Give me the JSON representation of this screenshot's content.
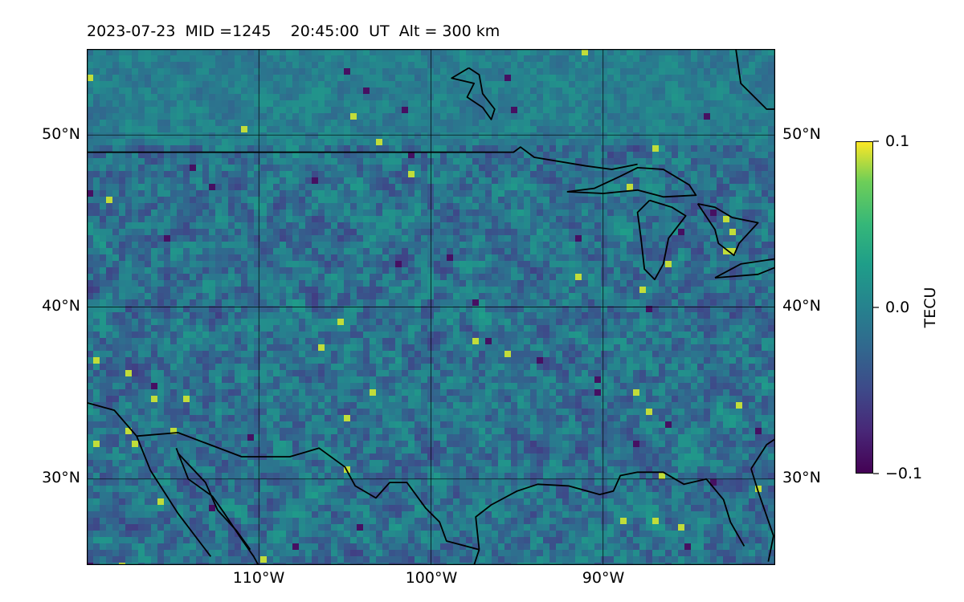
{
  "header": {
    "date": "2023-07-23",
    "mid": "MID =1245",
    "time": "20:45:00",
    "time_unit": "UT",
    "altitude": "Alt = 300 km"
  },
  "map": {
    "lon_range": [
      -120,
      -80
    ],
    "lat_range": [
      25,
      55
    ],
    "lat_labels": [
      "50°N",
      "40°N",
      "30°N"
    ],
    "lat_values": [
      50,
      40,
      30
    ],
    "lon_labels": [
      "110°W",
      "100°W",
      "90°W"
    ],
    "lon_values": [
      -110,
      -100,
      -90
    ],
    "gridlines": "on",
    "field": "TEC perturbation, noisy pixels between -0.1 and 0.1 TECU",
    "coastlines": "US-Canada border, Great Lakes, Gulf of Mexico, Mexico"
  },
  "colorbar": {
    "label": "TECU",
    "colormap": "viridis",
    "min": -0.1,
    "max": 0.1,
    "ticks": [
      "0.1",
      "0.0",
      "−0.1"
    ],
    "tick_values": [
      0.1,
      0.0,
      -0.1
    ]
  },
  "colors": {
    "viridis_low": "#440154",
    "viridis_mid": "#21918c",
    "viridis_high": "#fde725"
  }
}
